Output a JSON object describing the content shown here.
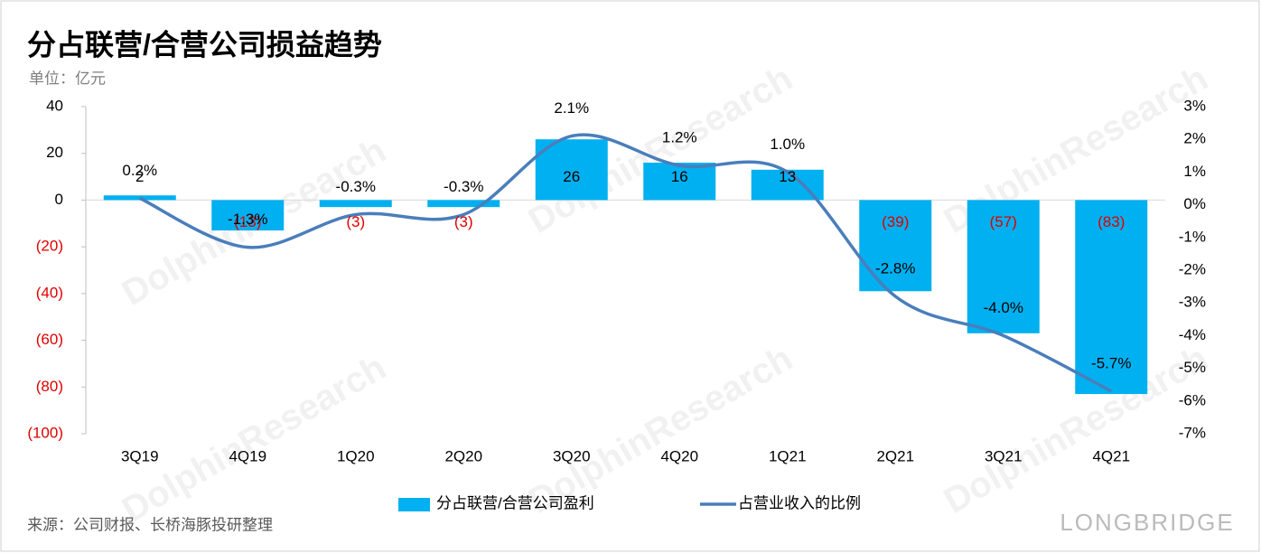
{
  "chart_data": {
    "type": "bar_line",
    "title": "分占联营/合营公司损益趋势",
    "subtitle": "单位：亿元",
    "source": "来源：公司财报、长桥海豚投研整理",
    "watermark": "DolphinResearch",
    "brand": "LONGBRIDGE",
    "categories": [
      "3Q19",
      "4Q19",
      "1Q20",
      "2Q20",
      "3Q20",
      "4Q20",
      "1Q21",
      "2Q21",
      "3Q21",
      "4Q21"
    ],
    "series": [
      {
        "name": "分占联营/合营公司盈利",
        "color": "#00b0f0",
        "kind": "bar",
        "values": [
          2,
          -13,
          -3,
          -3,
          26,
          16,
          13,
          -39,
          -57,
          -83
        ],
        "value_labels": [
          "2",
          "(13)",
          "(3)",
          "(3)",
          "26",
          "16",
          "13",
          "(39)",
          "(57)",
          "(83)"
        ]
      },
      {
        "name": "占营业收入的比例",
        "color": "#4a7ebb",
        "kind": "line",
        "axis": "y2",
        "values": [
          0.2,
          -1.3,
          -0.3,
          -0.3,
          2.1,
          1.2,
          1.0,
          -2.8,
          -4.0,
          -5.7
        ],
        "value_labels": [
          "0.2%",
          "-1.3%",
          "-0.3%",
          "-0.3%",
          "2.1%",
          "1.2%",
          "1.0%",
          "-2.8%",
          "-4.0%",
          "-5.7%"
        ]
      }
    ],
    "negative_color": "#e00000",
    "ylim": [
      -100,
      40
    ],
    "yticks": [
      40,
      20,
      0,
      {
        "value": -20,
        "label": "(20)"
      },
      {
        "value": -40,
        "label": "(40)"
      },
      {
        "value": -60,
        "label": "(60)"
      },
      {
        "value": -80,
        "label": "(80)"
      },
      {
        "value": -100,
        "label": "(100)"
      }
    ],
    "y2lim": [
      -7,
      3
    ],
    "y2ticks": [
      {
        "value": 3,
        "label": "3%"
      },
      {
        "value": 2,
        "label": "2%"
      },
      {
        "value": 1,
        "label": "1%"
      },
      {
        "value": 0,
        "label": "0%"
      },
      {
        "value": -1,
        "label": "-1%"
      },
      {
        "value": -2,
        "label": "-2%"
      },
      {
        "value": -3,
        "label": "-3%"
      },
      {
        "value": -4,
        "label": "-4%"
      },
      {
        "value": -5,
        "label": "-5%"
      },
      {
        "value": -6,
        "label": "-6%"
      },
      {
        "value": -7,
        "label": "-7%"
      }
    ]
  }
}
